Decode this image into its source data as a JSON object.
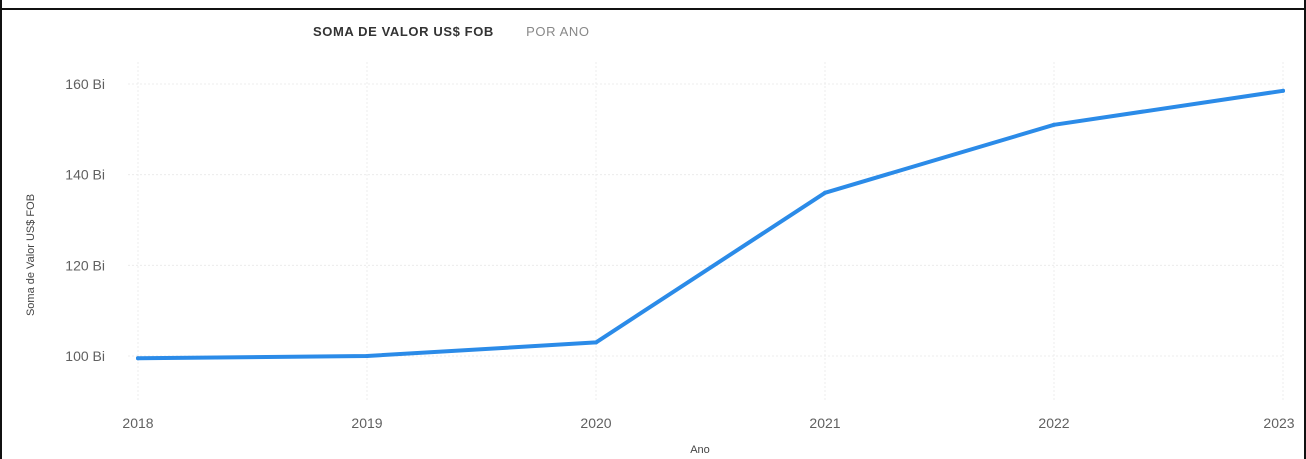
{
  "header": {
    "clipped_title": "",
    "chart_title_main": "SOMA DE VALOR US$ FOB",
    "chart_title_sub": "POR ANO"
  },
  "chart_data": {
    "type": "line",
    "title": "SOMA DE VALOR US$ FOB POR ANO",
    "xlabel": "Ano",
    "ylabel": "Soma de Valor US$ FOB",
    "categories": [
      "2018",
      "2019",
      "2020",
      "2021",
      "2022",
      "2023"
    ],
    "series": [
      {
        "values": [
          99.5,
          100,
          103,
          136,
          151,
          158.5
        ]
      }
    ],
    "y_ticks": [
      100,
      120,
      140,
      160
    ],
    "y_tick_labels": [
      "100 Bi",
      "120 Bi",
      "140 Bi",
      "160 Bi"
    ],
    "ylim": [
      89,
      165
    ],
    "grid": true,
    "line_color": "#2b8be8"
  }
}
